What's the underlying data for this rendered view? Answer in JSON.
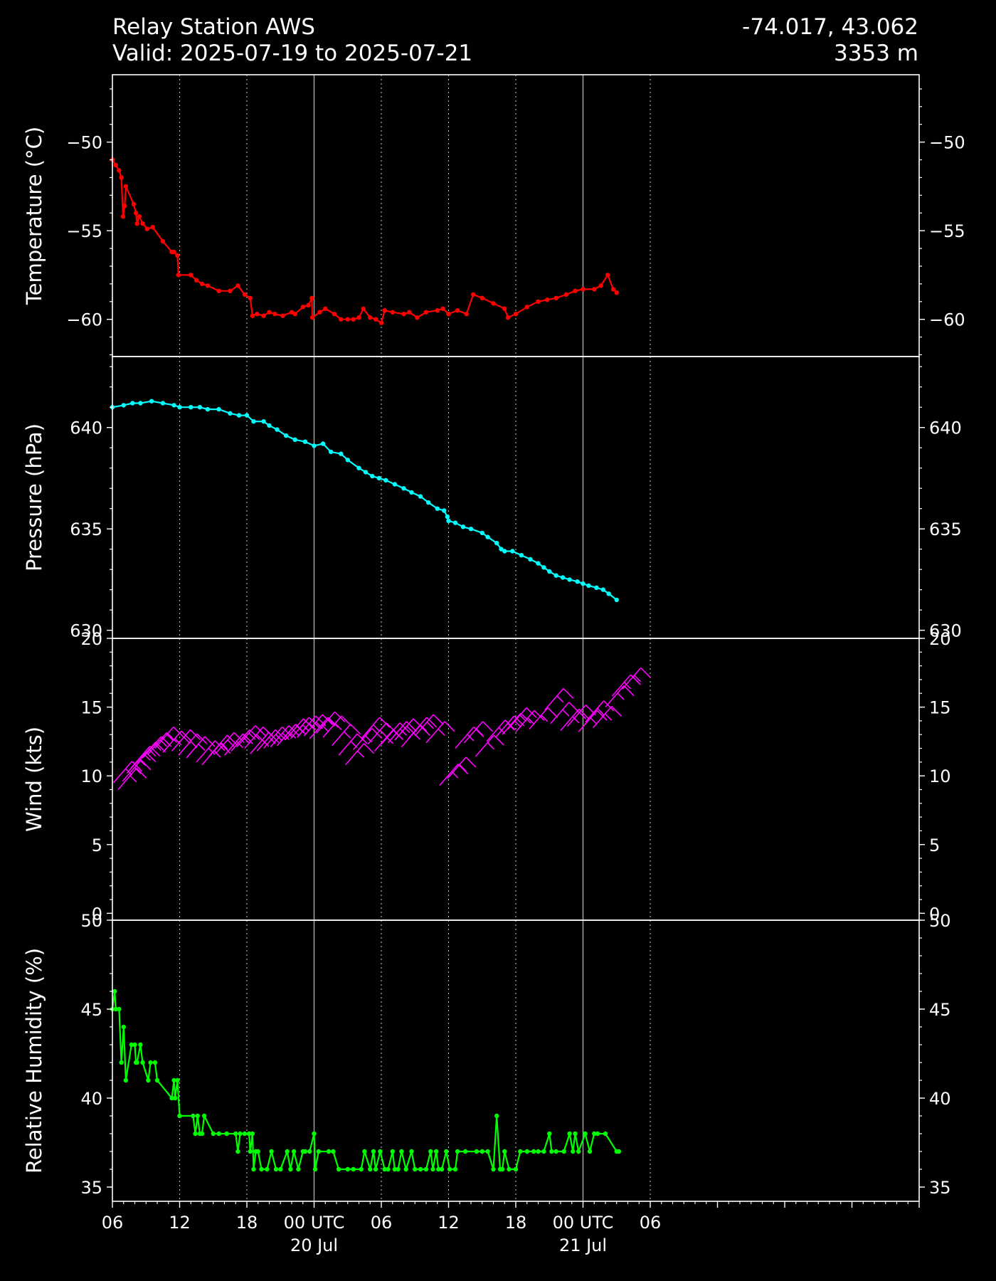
{
  "header": {
    "station": "Relay Station AWS",
    "valid": "Valid: 2025-07-19 to 2025-07-21",
    "coords": "-74.017, 43.062",
    "elevation": "3353 m"
  },
  "colors": {
    "background": "#000000",
    "axes": "#ffffff",
    "temperature": "#ff0000",
    "pressure": "#00ffff",
    "wind": "#ff00ff",
    "humidity": "#00ff00",
    "grid": "#bbbbbb"
  },
  "x_axis": {
    "range_hours": [
      6,
      78
    ],
    "ticks": [
      {
        "h": 6,
        "label": "06"
      },
      {
        "h": 12,
        "label": "12"
      },
      {
        "h": 18,
        "label": "18"
      },
      {
        "h": 24,
        "label": "00 UTC",
        "label2": "20 Jul"
      },
      {
        "h": 30,
        "label": "06"
      },
      {
        "h": 36,
        "label": "12"
      },
      {
        "h": 42,
        "label": "18"
      },
      {
        "h": 48,
        "label": "00 UTC",
        "label2": "21 Jul"
      },
      {
        "h": 54,
        "label": "06"
      }
    ]
  },
  "chart_data": [
    {
      "type": "line",
      "name": "temperature",
      "ylabel": "Temperature ($^\\circ$C)",
      "ylim": [
        -62.1,
        -46.2
      ],
      "yticks": [
        -50,
        -55,
        -60
      ],
      "grid": "vertical",
      "points": [
        [
          6.0,
          -51.0
        ],
        [
          6.3,
          -51.3
        ],
        [
          6.6,
          -51.6
        ],
        [
          6.8,
          -52.0
        ],
        [
          6.95,
          -54.2
        ],
        [
          7.1,
          -53.6
        ],
        [
          7.2,
          -52.5
        ],
        [
          7.9,
          -53.5
        ],
        [
          8.1,
          -54.0
        ],
        [
          8.2,
          -54.6
        ],
        [
          8.4,
          -54.2
        ],
        [
          8.7,
          -54.6
        ],
        [
          9.1,
          -54.9
        ],
        [
          9.6,
          -54.8
        ],
        [
          10.5,
          -55.6
        ],
        [
          11.3,
          -56.2
        ],
        [
          11.5,
          -56.2
        ],
        [
          11.8,
          -56.4
        ],
        [
          11.9,
          -57.5
        ],
        [
          13.0,
          -57.5
        ],
        [
          13.5,
          -57.8
        ],
        [
          14.0,
          -58.0
        ],
        [
          14.5,
          -58.1
        ],
        [
          15.5,
          -58.4
        ],
        [
          16.5,
          -58.4
        ],
        [
          17.2,
          -58.1
        ],
        [
          17.8,
          -58.6
        ],
        [
          18.3,
          -58.8
        ],
        [
          18.5,
          -59.8
        ],
        [
          18.9,
          -59.7
        ],
        [
          19.5,
          -59.8
        ],
        [
          20.0,
          -59.6
        ],
        [
          20.5,
          -59.7
        ],
        [
          21.2,
          -59.8
        ],
        [
          22.0,
          -59.6
        ],
        [
          22.3,
          -59.7
        ],
        [
          23.0,
          -59.3
        ],
        [
          23.5,
          -59.2
        ],
        [
          23.8,
          -58.8
        ],
        [
          23.85,
          -59.9
        ],
        [
          24.5,
          -59.6
        ],
        [
          25.0,
          -59.4
        ],
        [
          25.8,
          -59.7
        ],
        [
          26.4,
          -60.0
        ],
        [
          27.0,
          -60.0
        ],
        [
          27.5,
          -60.0
        ],
        [
          28.0,
          -59.9
        ],
        [
          28.4,
          -59.4
        ],
        [
          29.0,
          -59.9
        ],
        [
          29.5,
          -60.0
        ],
        [
          30.0,
          -60.2
        ],
        [
          30.3,
          -59.5
        ],
        [
          31.0,
          -59.6
        ],
        [
          32.0,
          -59.7
        ],
        [
          32.5,
          -59.6
        ],
        [
          33.2,
          -59.9
        ],
        [
          34.0,
          -59.6
        ],
        [
          35.0,
          -59.5
        ],
        [
          35.5,
          -59.4
        ],
        [
          36.0,
          -59.7
        ],
        [
          36.8,
          -59.5
        ],
        [
          37.6,
          -59.7
        ],
        [
          38.2,
          -58.6
        ],
        [
          39.0,
          -58.8
        ],
        [
          40.0,
          -59.1
        ],
        [
          41.0,
          -59.4
        ],
        [
          41.3,
          -59.9
        ],
        [
          42.0,
          -59.7
        ],
        [
          43.0,
          -59.3
        ],
        [
          44.0,
          -59.0
        ],
        [
          44.8,
          -58.9
        ],
        [
          45.6,
          -58.8
        ],
        [
          46.5,
          -58.6
        ],
        [
          47.3,
          -58.4
        ],
        [
          48.0,
          -58.3
        ],
        [
          49.0,
          -58.3
        ],
        [
          49.6,
          -58.1
        ],
        [
          50.2,
          -57.5
        ],
        [
          50.7,
          -58.3
        ],
        [
          51.0,
          -58.5
        ]
      ]
    },
    {
      "type": "line",
      "name": "pressure",
      "ylabel": "Pressure (hPa)",
      "ylim": [
        629.6,
        643.5
      ],
      "yticks": [
        640,
        635,
        630
      ],
      "grid": "vertical",
      "points": [
        [
          6.0,
          641.0
        ],
        [
          7.0,
          641.1
        ],
        [
          7.8,
          641.2
        ],
        [
          8.5,
          641.2
        ],
        [
          9.5,
          641.3
        ],
        [
          10.5,
          641.2
        ],
        [
          11.5,
          641.1
        ],
        [
          12.0,
          641.0
        ],
        [
          13.0,
          641.0
        ],
        [
          13.8,
          641.0
        ],
        [
          14.5,
          640.9
        ],
        [
          15.5,
          640.9
        ],
        [
          16.5,
          640.7
        ],
        [
          17.3,
          640.6
        ],
        [
          18.0,
          640.6
        ],
        [
          18.6,
          640.3
        ],
        [
          19.5,
          640.3
        ],
        [
          20.0,
          640.1
        ],
        [
          20.7,
          639.9
        ],
        [
          21.5,
          639.6
        ],
        [
          22.3,
          639.4
        ],
        [
          23.2,
          639.3
        ],
        [
          24.0,
          639.1
        ],
        [
          24.8,
          639.2
        ],
        [
          25.5,
          638.8
        ],
        [
          26.4,
          638.7
        ],
        [
          27.0,
          638.4
        ],
        [
          28.0,
          638.0
        ],
        [
          28.6,
          637.8
        ],
        [
          29.2,
          637.6
        ],
        [
          29.8,
          637.5
        ],
        [
          30.4,
          637.4
        ],
        [
          31.2,
          637.2
        ],
        [
          32.0,
          637.0
        ],
        [
          32.7,
          636.8
        ],
        [
          33.5,
          636.6
        ],
        [
          34.2,
          636.3
        ],
        [
          35.0,
          636.0
        ],
        [
          35.6,
          635.9
        ],
        [
          35.9,
          635.6
        ],
        [
          36.0,
          635.4
        ],
        [
          36.6,
          635.3
        ],
        [
          37.3,
          635.1
        ],
        [
          38.0,
          635.0
        ],
        [
          39.0,
          634.8
        ],
        [
          39.5,
          634.6
        ],
        [
          40.3,
          634.3
        ],
        [
          40.7,
          634.0
        ],
        [
          41.0,
          633.9
        ],
        [
          41.7,
          633.9
        ],
        [
          42.5,
          633.7
        ],
        [
          43.3,
          633.5
        ],
        [
          44.0,
          633.3
        ],
        [
          44.5,
          633.1
        ],
        [
          45.0,
          632.9
        ],
        [
          45.6,
          632.7
        ],
        [
          46.2,
          632.6
        ],
        [
          46.8,
          632.5
        ],
        [
          47.5,
          632.4
        ],
        [
          48.0,
          632.3
        ],
        [
          48.5,
          632.2
        ],
        [
          49.2,
          632.1
        ],
        [
          49.8,
          632.0
        ],
        [
          50.3,
          631.8
        ],
        [
          51.0,
          631.5
        ]
      ]
    },
    {
      "type": "barbs",
      "name": "wind",
      "ylabel": "Wind (kts)",
      "ylim": [
        -0.5,
        20
      ],
      "yticks": [
        0,
        5,
        10,
        15,
        20
      ],
      "grid": "vertical",
      "points": [
        [
          6.1,
          9.5
        ],
        [
          6.5,
          9.0
        ],
        [
          6.9,
          9.6
        ],
        [
          7.3,
          10.2
        ],
        [
          7.7,
          10.6
        ],
        [
          8.2,
          10.9
        ],
        [
          8.7,
          11.3
        ],
        [
          9.2,
          11.6
        ],
        [
          9.8,
          12.0
        ],
        [
          10.5,
          11.7
        ],
        [
          11.3,
          11.8
        ],
        [
          11.9,
          11.5
        ],
        [
          12.6,
          11.3
        ],
        [
          13.5,
          11.0
        ],
        [
          14.0,
          10.8
        ],
        [
          14.6,
          11.4
        ],
        [
          15.2,
          11.6
        ],
        [
          16.0,
          11.5
        ],
        [
          16.6,
          11.8
        ],
        [
          17.1,
          12.1
        ],
        [
          17.8,
          12.0
        ],
        [
          18.3,
          11.6
        ],
        [
          18.9,
          11.8
        ],
        [
          19.5,
          12.0
        ],
        [
          20.1,
          12.1
        ],
        [
          20.7,
          12.2
        ],
        [
          21.4,
          12.6
        ],
        [
          21.9,
          12.7
        ],
        [
          22.5,
          12.8
        ],
        [
          23.1,
          12.9
        ],
        [
          23.6,
          12.7
        ],
        [
          24.2,
          13.1
        ],
        [
          24.8,
          12.8
        ],
        [
          25.6,
          12.2
        ],
        [
          26.2,
          11.5
        ],
        [
          26.8,
          10.8
        ],
        [
          27.5,
          11.9
        ],
        [
          28.2,
          12.7
        ],
        [
          28.8,
          12.3
        ],
        [
          29.4,
          11.8
        ],
        [
          30.0,
          12.3
        ],
        [
          30.6,
          12.4
        ],
        [
          31.2,
          12.6
        ],
        [
          31.8,
          12.1
        ],
        [
          32.4,
          12.7
        ],
        [
          33.0,
          12.9
        ],
        [
          34.0,
          12.4
        ],
        [
          35.2,
          9.3
        ],
        [
          35.9,
          9.8
        ],
        [
          36.6,
          12.0
        ],
        [
          37.4,
          12.4
        ],
        [
          38.4,
          11.4
        ],
        [
          39.4,
          12.5
        ],
        [
          40.2,
          12.8
        ],
        [
          40.8,
          13.0
        ],
        [
          41.3,
          13.4
        ],
        [
          42.0,
          13.2
        ],
        [
          43.2,
          13.4
        ],
        [
          44.6,
          14.8
        ],
        [
          45.1,
          13.8
        ],
        [
          46.0,
          13.3
        ],
        [
          46.6,
          13.6
        ],
        [
          47.6,
          13.2
        ],
        [
          48.2,
          13.9
        ],
        [
          48.9,
          13.5
        ],
        [
          50.0,
          15.0
        ],
        [
          50.6,
          15.8
        ],
        [
          51.5,
          16.3
        ]
      ]
    },
    {
      "type": "line",
      "name": "humidity",
      "ylabel": "Relative Humidity (%)",
      "ylim": [
        34.2,
        50
      ],
      "yticks": [
        35,
        40,
        45,
        50
      ],
      "grid": "vertical",
      "points": [
        [
          6.0,
          45
        ],
        [
          6.2,
          46
        ],
        [
          6.3,
          45
        ],
        [
          6.6,
          45
        ],
        [
          6.8,
          42
        ],
        [
          7.0,
          44
        ],
        [
          7.2,
          41
        ],
        [
          7.7,
          43
        ],
        [
          8.0,
          43
        ],
        [
          8.1,
          42
        ],
        [
          8.2,
          42
        ],
        [
          8.5,
          43
        ],
        [
          8.7,
          42
        ],
        [
          9.2,
          41
        ],
        [
          9.4,
          42
        ],
        [
          9.8,
          42
        ],
        [
          10.0,
          41
        ],
        [
          11.3,
          40
        ],
        [
          11.5,
          41
        ],
        [
          11.6,
          40
        ],
        [
          11.8,
          41
        ],
        [
          12.0,
          39
        ],
        [
          13.2,
          39
        ],
        [
          13.4,
          38
        ],
        [
          13.6,
          39
        ],
        [
          13.8,
          38
        ],
        [
          14.0,
          38
        ],
        [
          14.2,
          39
        ],
        [
          15.0,
          38
        ],
        [
          15.5,
          38
        ],
        [
          16.2,
          38
        ],
        [
          17.0,
          38
        ],
        [
          17.2,
          37
        ],
        [
          17.4,
          38
        ],
        [
          17.8,
          38
        ],
        [
          18.2,
          38
        ],
        [
          18.3,
          37
        ],
        [
          18.5,
          38
        ],
        [
          18.6,
          36
        ],
        [
          18.8,
          37
        ],
        [
          19.0,
          37
        ],
        [
          19.3,
          36
        ],
        [
          19.8,
          36
        ],
        [
          20.2,
          37
        ],
        [
          20.6,
          36
        ],
        [
          21.0,
          36
        ],
        [
          21.6,
          37
        ],
        [
          21.9,
          36
        ],
        [
          22.2,
          37
        ],
        [
          22.6,
          36
        ],
        [
          23.0,
          37
        ],
        [
          23.2,
          37
        ],
        [
          23.6,
          37
        ],
        [
          24.0,
          38
        ],
        [
          24.1,
          36
        ],
        [
          24.4,
          37
        ],
        [
          25.3,
          37
        ],
        [
          25.7,
          37
        ],
        [
          26.2,
          36
        ],
        [
          27.0,
          36
        ],
        [
          27.5,
          36
        ],
        [
          28.2,
          36
        ],
        [
          28.5,
          37
        ],
        [
          29.0,
          36
        ],
        [
          29.3,
          37
        ],
        [
          29.5,
          36
        ],
        [
          29.9,
          37
        ],
        [
          30.3,
          36
        ],
        [
          30.6,
          36
        ],
        [
          31.0,
          37
        ],
        [
          31.2,
          36
        ],
        [
          31.5,
          36
        ],
        [
          31.8,
          37
        ],
        [
          32.2,
          36
        ],
        [
          32.7,
          37
        ],
        [
          33.0,
          36
        ],
        [
          33.5,
          36
        ],
        [
          34.0,
          36
        ],
        [
          34.4,
          37
        ],
        [
          34.6,
          36
        ],
        [
          34.9,
          37
        ],
        [
          35.1,
          36
        ],
        [
          35.4,
          36
        ],
        [
          35.8,
          37
        ],
        [
          36.1,
          36
        ],
        [
          36.6,
          36
        ],
        [
          36.8,
          37
        ],
        [
          37.5,
          37
        ],
        [
          38.5,
          37
        ],
        [
          39.0,
          37
        ],
        [
          39.5,
          37
        ],
        [
          40.0,
          36
        ],
        [
          40.3,
          39
        ],
        [
          40.6,
          36
        ],
        [
          40.8,
          36
        ],
        [
          41.0,
          37
        ],
        [
          41.4,
          36
        ],
        [
          42.0,
          36
        ],
        [
          42.4,
          37
        ],
        [
          43.0,
          37
        ],
        [
          43.6,
          37
        ],
        [
          44.0,
          37
        ],
        [
          44.5,
          37
        ],
        [
          45.0,
          38
        ],
        [
          45.2,
          37
        ],
        [
          45.6,
          37
        ],
        [
          46.3,
          37
        ],
        [
          46.8,
          38
        ],
        [
          47.1,
          37
        ],
        [
          47.3,
          38
        ],
        [
          47.6,
          37
        ],
        [
          48.2,
          38
        ],
        [
          48.6,
          37
        ],
        [
          49.0,
          38
        ],
        [
          49.3,
          38
        ],
        [
          50.0,
          38
        ],
        [
          51.0,
          37
        ],
        [
          51.2,
          37
        ]
      ]
    }
  ]
}
